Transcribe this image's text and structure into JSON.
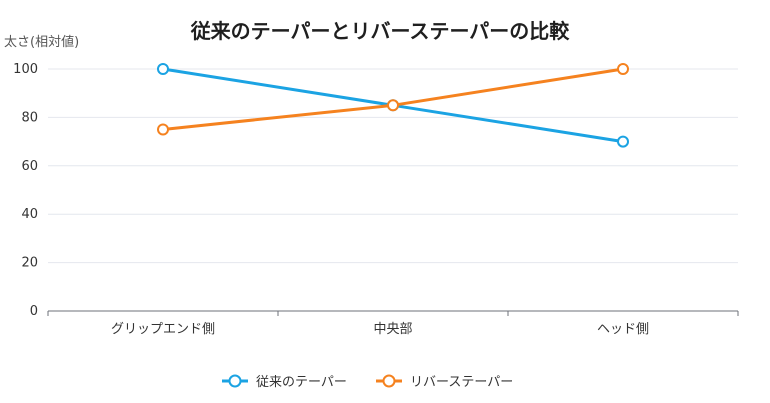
{
  "chart_data": {
    "type": "line",
    "title": "従来のテーパーとリバーステーパーの比較",
    "xlabel": "",
    "ylabel": "太さ(相対値)",
    "categories": [
      "グリップエンド側",
      "中央部",
      "ヘッド側"
    ],
    "ylim": [
      0,
      100
    ],
    "yticks": [
      0,
      20,
      40,
      60,
      80,
      100
    ],
    "grid": true,
    "legend_position": "bottom",
    "series": [
      {
        "name": "従来のテーパー",
        "color": "#1ba3e3",
        "values": [
          100,
          85,
          70
        ]
      },
      {
        "name": "リバーステーパー",
        "color": "#f5821f",
        "values": [
          75,
          85,
          100
        ]
      }
    ]
  }
}
